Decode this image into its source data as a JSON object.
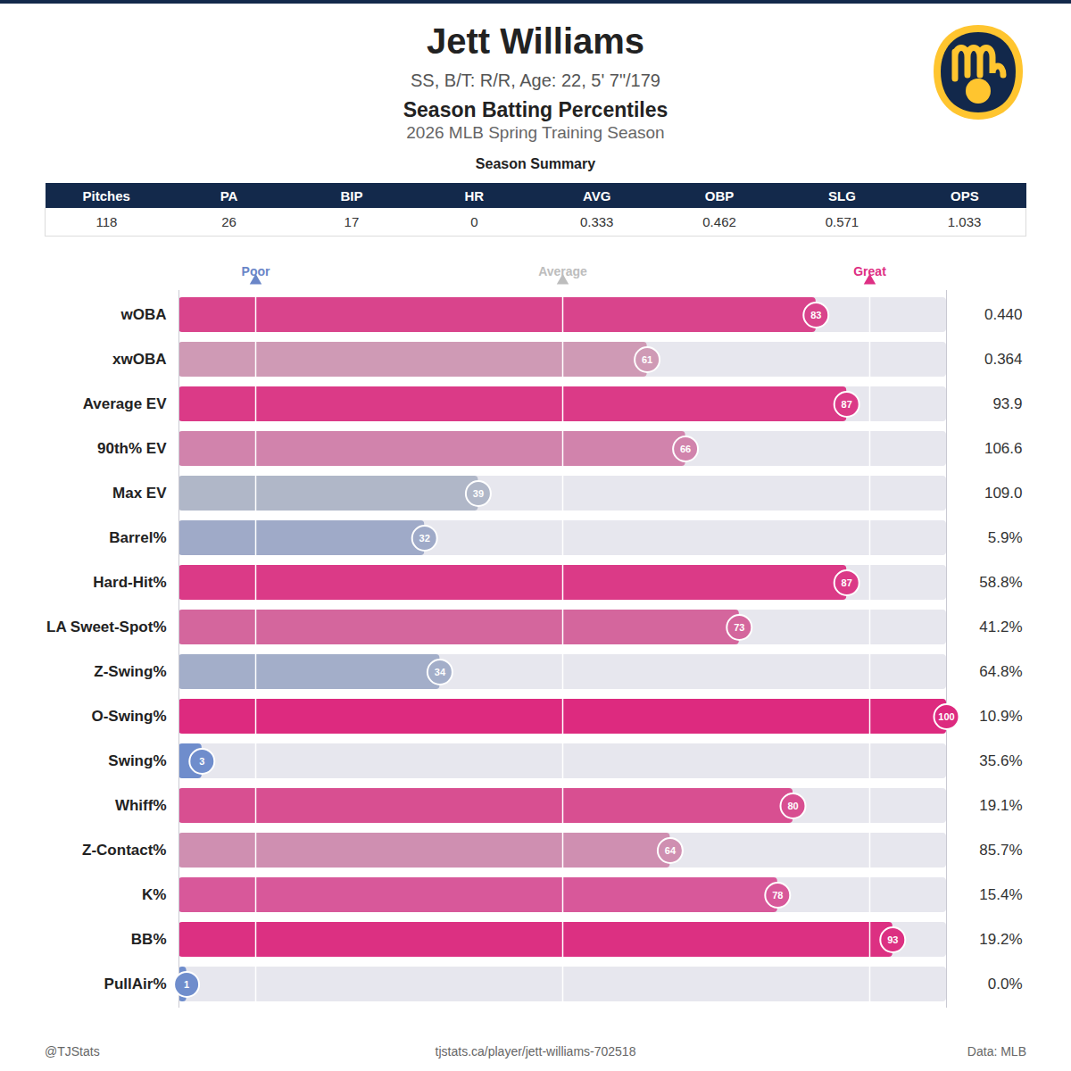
{
  "header": {
    "title": "Jett Williams",
    "subtitle": "SS, B/T: R/R, Age: 22, 5' 7\"/179",
    "heading": "Season Batting Percentiles",
    "season": "2026 MLB Spring Training Season"
  },
  "summary": {
    "title": "Season Summary",
    "columns": [
      "Pitches",
      "PA",
      "BIP",
      "HR",
      "AVG",
      "OBP",
      "SLG",
      "OPS"
    ],
    "values": [
      "118",
      "26",
      "17",
      "0",
      "0.333",
      "0.462",
      "0.571",
      "1.033"
    ]
  },
  "chart_data": {
    "type": "bar",
    "orientation": "horizontal",
    "categories": [
      "wOBA",
      "xwOBA",
      "Average EV",
      "90th% EV",
      "Max EV",
      "Barrel%",
      "Hard-Hit%",
      "LA Sweet-Spot%",
      "Z-Swing%",
      "O-Swing%",
      "Swing%",
      "Whiff%",
      "Z-Contact%",
      "K%",
      "BB%",
      "PullAir%"
    ],
    "values": [
      83,
      61,
      87,
      66,
      39,
      32,
      87,
      73,
      34,
      100,
      3,
      80,
      64,
      78,
      93,
      1
    ],
    "colors": [
      "#d9448c",
      "#cf9ab5",
      "#db3a87",
      "#d183ac",
      "#b0b7c8",
      "#9faac8",
      "#db3a87",
      "#d4669d",
      "#a3aec9",
      "#dd2a7f",
      "#6f8dcc",
      "#d84f91",
      "#cf8fb1",
      "#d8589a",
      "#dc3082",
      "#6f8dcc"
    ],
    "stat_values": [
      "0.440",
      "0.364",
      "93.9",
      "106.6",
      "109.0",
      "5.9%",
      "58.8%",
      "41.2%",
      "64.8%",
      "10.9%",
      "35.6%",
      "19.1%",
      "85.7%",
      "15.4%",
      "19.2%",
      "0.0%"
    ],
    "xlim": [
      0,
      100
    ],
    "xticks": [
      {
        "value": 10,
        "label": "Poor"
      },
      {
        "value": 50,
        "label": "Average"
      },
      {
        "value": 90,
        "label": "Great"
      }
    ],
    "grid": true,
    "data_labels": true
  },
  "footer": {
    "left": "@TJStats",
    "center": "tjstats.ca/player/jett-williams-702518",
    "right": "Data: MLB"
  }
}
